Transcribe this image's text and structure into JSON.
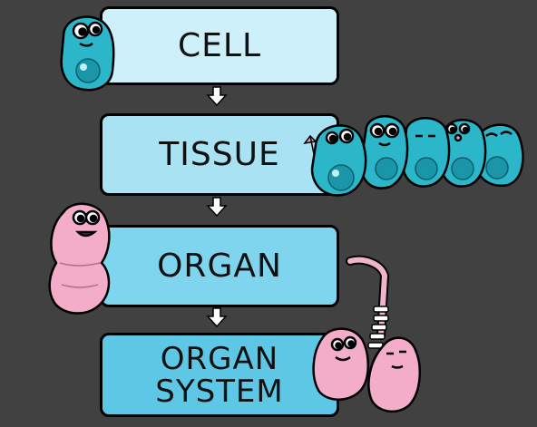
{
  "diagram": {
    "levels": [
      {
        "label": "CELL",
        "color": "#cdf0fb"
      },
      {
        "label": "TISSUE",
        "color": "#a8e2f3"
      },
      {
        "label": "ORGAN",
        "color": "#7fd4ee"
      },
      {
        "label": "ORGAN SYSTEM",
        "line1": "ORGAN",
        "line2": "SYSTEM",
        "color": "#5ec7e6"
      }
    ],
    "arrow_glyph": "⇩"
  }
}
